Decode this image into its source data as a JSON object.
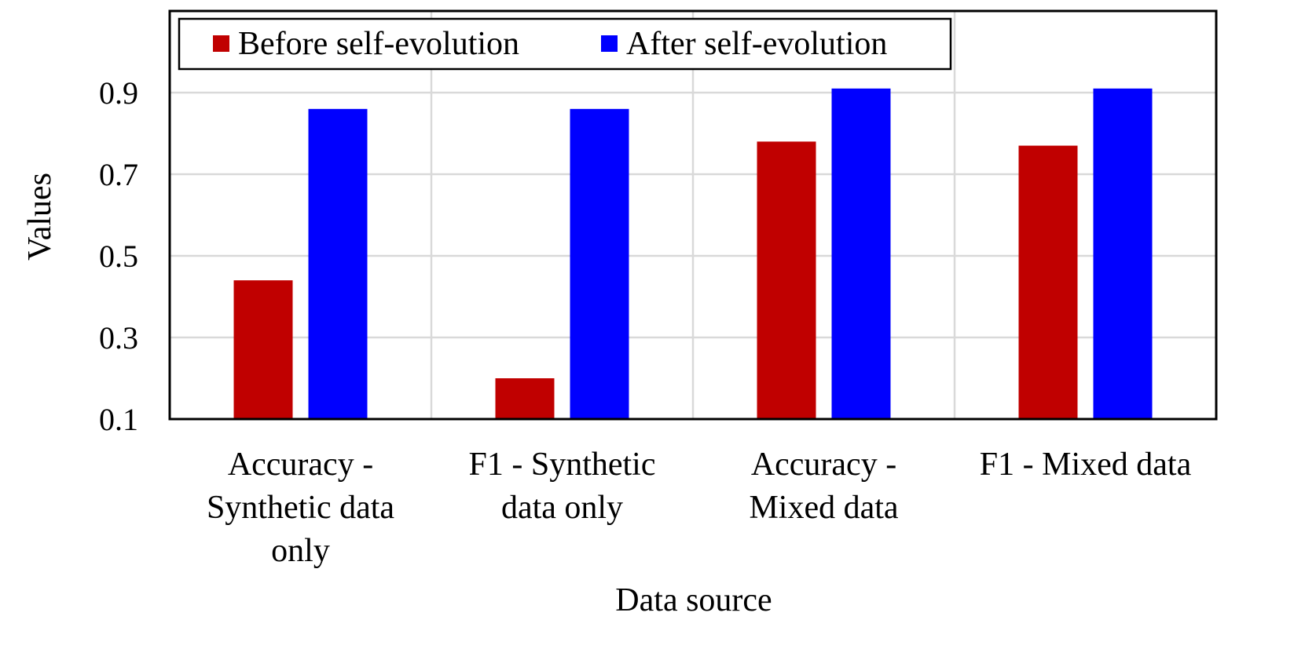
{
  "chart_data": {
    "type": "bar",
    "title": "",
    "xlabel": "Data source",
    "ylabel": "Values",
    "categories": [
      [
        "Accuracy -",
        "Synthetic data",
        "only"
      ],
      [
        "F1 - Synthetic",
        "data only"
      ],
      [
        "Accuracy -",
        "Mixed data"
      ],
      [
        "F1 - Mixed data"
      ]
    ],
    "series": [
      {
        "name": "Before self-evolution",
        "color": "#c00000",
        "values": [
          0.44,
          0.2,
          0.78,
          0.77
        ]
      },
      {
        "name": "After self-evolution",
        "color": "#0000ff",
        "values": [
          0.86,
          0.86,
          0.91,
          0.91
        ]
      }
    ],
    "ylim": [
      0.1,
      1.1
    ],
    "yticks": [
      "0.1",
      "0.3",
      "0.5",
      "0.7",
      "0.9"
    ],
    "ytick_values": [
      0.1,
      0.3,
      0.5,
      0.7,
      0.9
    ],
    "grid": true,
    "legend_position": "top-left"
  }
}
